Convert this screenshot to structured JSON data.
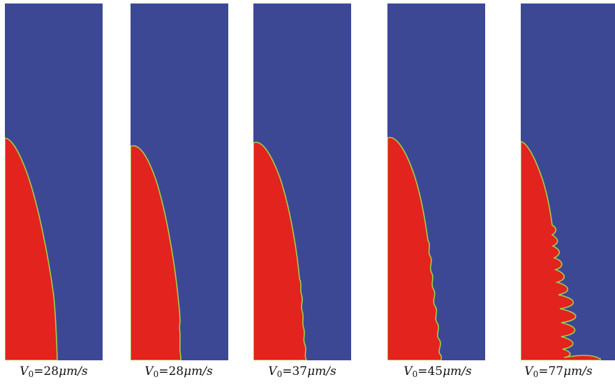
{
  "colors": {
    "liquid": "#3d4895",
    "solid": "#e2231e",
    "interface": "#9fcf4a"
  },
  "panels": [
    {
      "symbol": "V",
      "subscript": "0",
      "equals": "=",
      "value": "28",
      "unit": "μm/s"
    },
    {
      "symbol": "V",
      "subscript": "0",
      "equals": "=",
      "value": "28",
      "unit": "μm/s"
    },
    {
      "symbol": "V",
      "subscript": "0",
      "equals": "=",
      "value": "37",
      "unit": "μm/s"
    },
    {
      "symbol": "V",
      "subscript": "0",
      "equals": "=",
      "value": "45",
      "unit": "μm/s"
    },
    {
      "symbol": "V",
      "subscript": "0",
      "equals": "=",
      "value": "77",
      "unit": "μm/s"
    }
  ]
}
